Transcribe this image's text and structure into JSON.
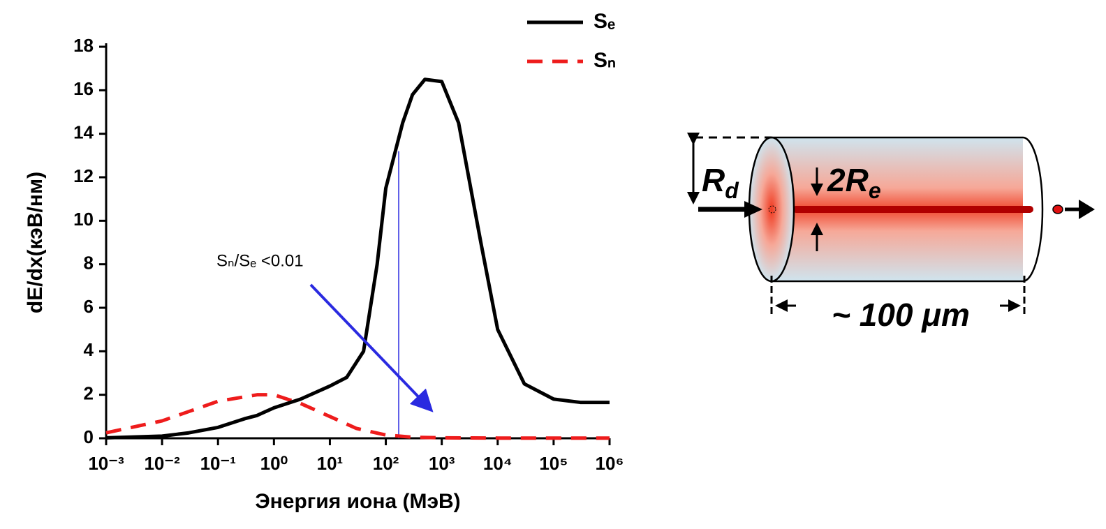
{
  "chart_data": {
    "type": "line",
    "x_label": "Энергия иона (МэВ)",
    "y_label": "dE/dx(кэВ/нм)",
    "x_scale": "log",
    "xlim": [
      0.001,
      1000000
    ],
    "xticks": [
      {
        "value": 0.001,
        "label": "10⁻³"
      },
      {
        "value": 0.01,
        "label": "10⁻²"
      },
      {
        "value": 0.1,
        "label": "10⁻¹"
      },
      {
        "value": 1,
        "label": "10⁰"
      },
      {
        "value": 10,
        "label": "10¹"
      },
      {
        "value": 100,
        "label": "10²"
      },
      {
        "value": 1000,
        "label": "10³"
      },
      {
        "value": 10000,
        "label": "10⁴"
      },
      {
        "value": 100000,
        "label": "10⁵"
      },
      {
        "value": 1000000,
        "label": "10⁶"
      }
    ],
    "ylim": [
      0,
      18
    ],
    "yticks": [
      0,
      2,
      4,
      6,
      8,
      10,
      12,
      14,
      16,
      18
    ],
    "legend": "top-right",
    "series": [
      {
        "name": "Sₑ",
        "color": "#000000",
        "style": "solid",
        "x": [
          0.001,
          0.01,
          0.03,
          0.1,
          0.3,
          0.5,
          1,
          3,
          10,
          20,
          40,
          70,
          100,
          200,
          300,
          500,
          1000,
          2000,
          5000,
          10000,
          30000,
          100000,
          300000,
          1000000
        ],
        "values": [
          0.02,
          0.1,
          0.25,
          0.5,
          0.9,
          1.05,
          1.4,
          1.8,
          2.4,
          2.8,
          4,
          8,
          11.5,
          14.5,
          15.8,
          16.5,
          16.4,
          14.5,
          9,
          5,
          2.5,
          1.8,
          1.65,
          1.65
        ]
      },
      {
        "name": "Sₙ",
        "color": "#ee1c1c",
        "style": "dashed",
        "x": [
          0.001,
          0.01,
          0.1,
          0.5,
          1,
          3,
          10,
          30,
          100,
          300,
          1000,
          10000,
          1000000
        ],
        "values": [
          0.25,
          0.8,
          1.7,
          2.0,
          2.0,
          1.6,
          1.0,
          0.45,
          0.15,
          0.05,
          0.02,
          0.01,
          0.01
        ]
      }
    ],
    "annotation": "Sₙ/Sₑ <0.01",
    "reference_line": {
      "x": 170,
      "y_top": 13.2,
      "color": "#2a2ae0"
    }
  },
  "diagram": {
    "radius_label": {
      "text": "R",
      "subscript": "d"
    },
    "track_label": {
      "text": "2R",
      "subscript": "e"
    },
    "length_label": "~ 100 μm"
  }
}
